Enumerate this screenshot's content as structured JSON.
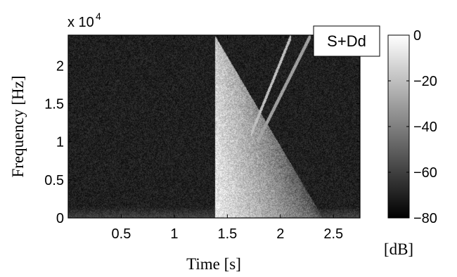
{
  "chart_data": {
    "type": "heatmap",
    "title": "",
    "annotation": "S+Dd",
    "xlabel": "Time [s]",
    "ylabel": "Frequency [Hz]",
    "xlim": [
      0,
      2.75
    ],
    "ylim": [
      0,
      24000
    ],
    "x_ticks": [
      0.5,
      1,
      1.5,
      2,
      2.5
    ],
    "x_tick_labels": [
      "0.5",
      "1",
      "1.5",
      "2",
      "2.5"
    ],
    "y_ticks": [
      0,
      5000,
      10000,
      15000,
      20000
    ],
    "y_tick_labels": [
      "0",
      "0.5",
      "1",
      "1.5",
      "2"
    ],
    "y_exponent": "x 10",
    "y_exponent_power": "4",
    "colorbar": {
      "label": "[dB]",
      "range": [
        -80,
        0
      ],
      "ticks": [
        0,
        -20,
        -40,
        -60,
        -80
      ],
      "tick_labels": [
        "0",
        "−20",
        "−40",
        "−60",
        "−80"
      ],
      "colormap": "gray"
    },
    "features": {
      "background_level_db": -70,
      "low_freq_band_hz": [
        0,
        1500
      ],
      "low_freq_band_level_db": -55,
      "onset_time_s": 1.38,
      "onset_level_db": -5,
      "decay_cone_end_time_s": 2.4,
      "chirp_lines": [
        {
          "t_start": 1.72,
          "f_start_hz": 11000,
          "t_end": 2.1,
          "f_end_hz": 24000,
          "level_db": -20
        },
        {
          "t_start": 1.78,
          "f_start_hz": 10000,
          "t_end": 2.28,
          "f_end_hz": 24000,
          "level_db": -30
        }
      ]
    }
  }
}
